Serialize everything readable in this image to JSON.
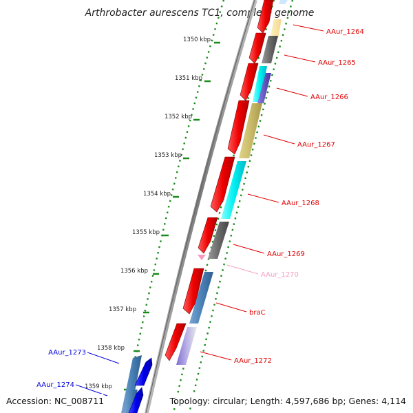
{
  "title": "Arthrobacter aurescens TC1, complete genome",
  "footer": {
    "accession": "Accession: NC_008711",
    "summary": "Topology: circular; Length: 4,597,686 bp; Genes: 4,114"
  },
  "ticks": [
    "1350 kbp",
    "1351 kbp",
    "1352 kbp",
    "1353 kbp",
    "1354 kbp",
    "1355 kbp",
    "1356 kbp",
    "1357 kbp",
    "1358 kbp",
    "1359 kbp"
  ],
  "gene_labels": [
    {
      "name": "AAur_1264",
      "color": "#e00000"
    },
    {
      "name": "AAur_1265",
      "color": "#e00000"
    },
    {
      "name": "AAur_1266",
      "color": "#e00000"
    },
    {
      "name": "AAur_1267",
      "color": "#e00000"
    },
    {
      "name": "AAur_1268",
      "color": "#e00000"
    },
    {
      "name": "AAur_1269",
      "color": "#e00000"
    },
    {
      "name": "AAur_1270",
      "color": "#f7a1c4"
    },
    {
      "name": "braC",
      "color": "#e00000"
    },
    {
      "name": "AAur_1272",
      "color": "#e00000"
    },
    {
      "name": "AAur_1273",
      "color": "#0000dd"
    },
    {
      "name": "AAur_1274",
      "color": "#0000dd"
    }
  ],
  "colors": {
    "forward_strand": "#e00000",
    "reverse_strand": "#0000ee",
    "backbone": "#8a8a8a",
    "grid_dots": "#1a8a1a",
    "tick_mark": "#1a8a1a"
  }
}
